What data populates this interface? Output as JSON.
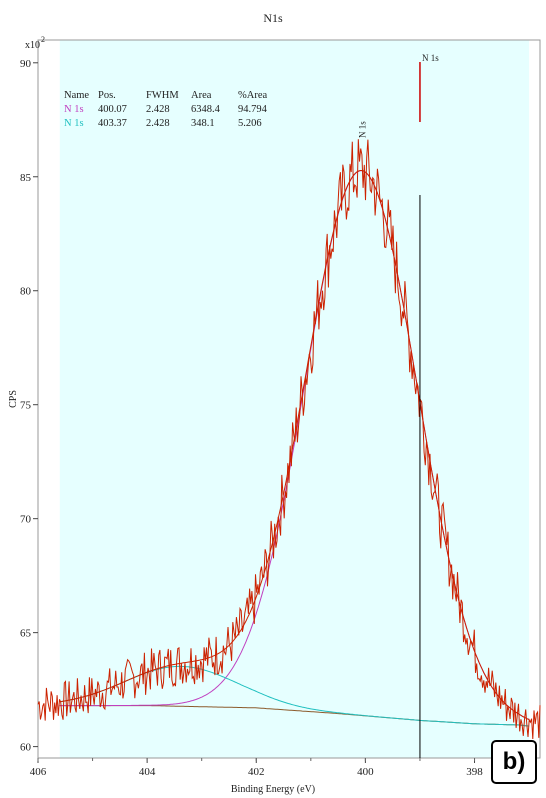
{
  "chart_data": {
    "type": "line",
    "title": "N1s",
    "xlabel": "Binding Energy (eV)",
    "ylabel": "CPS",
    "y_multiplier": "x10",
    "y_multiplier_exp": "2",
    "xlim": [
      406,
      396.8
    ],
    "ylim": [
      59.5,
      91
    ],
    "x_reversed": true,
    "x_ticks": [
      406,
      404,
      402,
      400,
      398
    ],
    "y_ticks": [
      60,
      65,
      70,
      75,
      80,
      85,
      90
    ],
    "shaded_region": [
      405.6,
      397.0
    ],
    "marker_line": {
      "x": 399.0,
      "label": "N 1s"
    },
    "peak_label": {
      "x": 400.07,
      "text": "N 1s"
    },
    "panel_label": "b)",
    "table": {
      "headers": [
        "Name",
        "Pos.",
        "FWHM",
        "Area",
        "%Area"
      ],
      "rows": [
        {
          "cells": [
            "N 1s",
            "400.07",
            "2.428",
            "6348.4",
            "94.794"
          ],
          "color": "#c040c0"
        },
        {
          "cells": [
            "N 1s",
            "403.37",
            "2.428",
            "348.1",
            "5.206"
          ],
          "color": "#20c0c0"
        }
      ]
    },
    "background": {
      "x": [
        405.6,
        404,
        402,
        400.5,
        399,
        398,
        397.2,
        397.0
      ],
      "y": [
        61.8,
        61.8,
        61.7,
        61.45,
        61.15,
        61.0,
        60.95,
        60.9
      ]
    },
    "components": [
      {
        "name": "N 1s",
        "color": "#c040c0",
        "center": 400.07,
        "height": 23.9,
        "fwhm": 2.428
      },
      {
        "name": "N 1s",
        "color": "#20c0c0",
        "center": 403.37,
        "height": 1.75,
        "fwhm": 2.428
      }
    ],
    "raw_seed": 7,
    "colors": {
      "raw": "#cc2200",
      "envelope": "#cc2200",
      "background_line": "#8b5a2b",
      "region": "#e6ffff",
      "marker": "#000000",
      "marker_tick": "#cc0000"
    }
  }
}
